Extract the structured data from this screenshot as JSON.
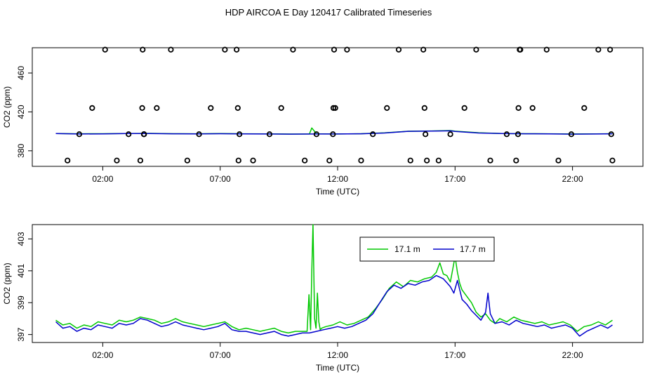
{
  "title": "HDP AIRCOA E  Day 120417  Calibrated Timeseries",
  "chart_data": [
    {
      "type": "scatter",
      "id": "top",
      "xlabel": "Time (UTC)",
      "ylabel": "CO2 (ppm)",
      "xlim": [
        -1.0,
        25.0
      ],
      "ylim": [
        364,
        486
      ],
      "x_ticks": [
        2,
        7,
        12,
        17,
        22
      ],
      "x_tick_labels": [
        "02:00",
        "07:00",
        "12:00",
        "17:00",
        "22:00"
      ],
      "y_ticks": [
        380,
        420,
        460
      ],
      "y_tick_labels": [
        "380",
        "420",
        "460"
      ],
      "grid": false,
      "calibration_points": {
        "x": [
          0.5,
          1.0,
          1.55,
          2.1,
          2.6,
          3.1,
          3.6,
          3.68,
          3.7,
          3.75,
          3.76,
          4.3,
          4.9,
          5.6,
          6.1,
          6.6,
          7.2,
          7.7,
          7.75,
          7.78,
          7.82,
          8.4,
          9.1,
          9.6,
          10.1,
          10.6,
          11.1,
          11.65,
          11.8,
          11.82,
          11.85,
          11.9,
          12.4,
          13.0,
          13.5,
          14.1,
          14.6,
          15.1,
          15.65,
          15.7,
          15.74,
          15.8,
          16.3,
          16.8,
          17.4,
          17.9,
          18.5,
          19.2,
          19.6,
          19.68,
          19.7,
          19.75,
          19.78,
          20.3,
          20.9,
          21.4,
          21.95,
          22.5,
          23.1,
          23.6,
          23.65,
          23.7
        ],
        "y": [
          370,
          397,
          424,
          484,
          370,
          397,
          370,
          424,
          484,
          397,
          397,
          424,
          484,
          370,
          397,
          424,
          484,
          484,
          424,
          370,
          397,
          370,
          397,
          424,
          484,
          370,
          397,
          370,
          397,
          424,
          484,
          424,
          484,
          370,
          397,
          424,
          484,
          370,
          484,
          424,
          397,
          370,
          370,
          397,
          424,
          484,
          370,
          397,
          370,
          397,
          424,
          484,
          484,
          424,
          484,
          370,
          397,
          424,
          484,
          484,
          397,
          370
        ]
      },
      "series": [
        {
          "name": "",
          "color": "#00c800",
          "x": [
            0,
            1,
            2,
            3,
            4,
            5,
            6,
            7,
            8,
            9,
            10,
            10.8,
            10.9,
            11.1,
            11.3,
            12,
            13,
            14,
            15,
            16,
            16.8,
            17,
            18,
            19,
            20,
            21,
            22,
            23,
            23.7
          ],
          "y": [
            397.8,
            397.5,
            397.6,
            397.8,
            397.9,
            397.6,
            397.5,
            397.7,
            397.5,
            397.4,
            397.2,
            397.3,
            403.5,
            397.5,
            397.4,
            397.3,
            397.6,
            398.5,
            400.1,
            400.4,
            400.8,
            400.2,
            398.6,
            397.8,
            397.6,
            397.5,
            397.3,
            397.4,
            397.6
          ]
        },
        {
          "name": "",
          "color": "#0000cc",
          "x": [
            0,
            1,
            2,
            3,
            4,
            5,
            6,
            7,
            8,
            9,
            10,
            11,
            12,
            13,
            14,
            15,
            16,
            16.8,
            17,
            18,
            19,
            20,
            21,
            22,
            23,
            23.7
          ],
          "y": [
            397.8,
            397.3,
            397.4,
            397.7,
            397.8,
            397.5,
            397.4,
            397.6,
            397.4,
            397.3,
            397.1,
            397.3,
            397.3,
            397.5,
            398.3,
            400.0,
            400.3,
            400.5,
            399.9,
            398.3,
            397.7,
            397.5,
            397.4,
            397.1,
            397.3,
            397.5
          ]
        }
      ]
    },
    {
      "type": "line",
      "id": "bottom",
      "xlabel": "Time (UTC)",
      "ylabel": "CO2 (ppm)",
      "xlim": [
        -1.0,
        25.0
      ],
      "ylim": [
        396.5,
        403.9
      ],
      "x_ticks": [
        2,
        7,
        12,
        17,
        22
      ],
      "x_tick_labels": [
        "02:00",
        "07:00",
        "12:00",
        "17:00",
        "22:00"
      ],
      "y_ticks": [
        397,
        399,
        401,
        403
      ],
      "y_tick_labels": [
        "397",
        "399",
        "401",
        "403"
      ],
      "grid": false,
      "legend_position": "top-right",
      "series": [
        {
          "name": "17.1 m",
          "color": "#00c800",
          "x": [
            0.0,
            0.3,
            0.6,
            0.9,
            1.2,
            1.5,
            1.8,
            2.1,
            2.4,
            2.7,
            3.0,
            3.3,
            3.6,
            3.9,
            4.2,
            4.5,
            4.8,
            5.1,
            5.4,
            5.7,
            6.0,
            6.3,
            6.6,
            6.9,
            7.2,
            7.5,
            7.8,
            8.1,
            8.4,
            8.7,
            9.0,
            9.3,
            9.6,
            9.9,
            10.2,
            10.5,
            10.7,
            10.78,
            10.85,
            10.9,
            10.95,
            11.02,
            11.08,
            11.14,
            11.2,
            11.26,
            11.32,
            11.5,
            11.8,
            12.1,
            12.4,
            12.7,
            13.0,
            13.3,
            13.6,
            13.9,
            14.2,
            14.5,
            14.8,
            15.1,
            15.4,
            15.7,
            16.0,
            16.2,
            16.35,
            16.5,
            16.65,
            16.8,
            16.9,
            17.0,
            17.1,
            17.2,
            17.3,
            17.5,
            17.7,
            17.9,
            18.1,
            18.3,
            18.5,
            18.7,
            18.9,
            19.2,
            19.5,
            19.8,
            20.1,
            20.4,
            20.7,
            21.0,
            21.3,
            21.6,
            21.9,
            22.2,
            22.5,
            22.8,
            23.1,
            23.4,
            23.7
          ],
          "y": [
            397.9,
            397.6,
            397.7,
            397.4,
            397.6,
            397.5,
            397.8,
            397.7,
            397.6,
            397.9,
            397.8,
            397.9,
            398.1,
            398.0,
            397.9,
            397.7,
            397.8,
            398.0,
            397.8,
            397.7,
            397.6,
            397.5,
            397.6,
            397.7,
            397.8,
            397.5,
            397.3,
            397.4,
            397.3,
            397.2,
            397.3,
            397.4,
            397.2,
            397.1,
            397.2,
            397.2,
            397.2,
            399.5,
            397.3,
            401.0,
            403.9,
            398.0,
            397.4,
            399.6,
            397.8,
            397.3,
            397.4,
            397.5,
            397.6,
            397.8,
            397.6,
            397.7,
            397.9,
            398.1,
            398.6,
            399.2,
            399.9,
            400.3,
            400.0,
            400.4,
            400.3,
            400.5,
            400.6,
            400.9,
            401.5,
            400.8,
            400.7,
            400.3,
            401.1,
            401.9,
            400.9,
            400.2,
            399.8,
            399.4,
            399.0,
            398.4,
            398.1,
            398.3,
            397.9,
            397.7,
            398.0,
            397.8,
            398.1,
            397.9,
            397.8,
            397.7,
            397.8,
            397.6,
            397.7,
            397.8,
            397.6,
            397.2,
            397.5,
            397.6,
            397.8,
            397.6,
            397.9
          ]
        },
        {
          "name": "17.7 m",
          "color": "#0000cc",
          "x": [
            0.0,
            0.3,
            0.6,
            0.9,
            1.2,
            1.5,
            1.8,
            2.1,
            2.4,
            2.7,
            3.0,
            3.3,
            3.6,
            3.9,
            4.2,
            4.5,
            4.8,
            5.1,
            5.4,
            5.7,
            6.0,
            6.3,
            6.6,
            6.9,
            7.2,
            7.5,
            7.8,
            8.1,
            8.4,
            8.7,
            9.0,
            9.3,
            9.6,
            9.9,
            10.2,
            10.5,
            10.8,
            11.1,
            11.4,
            11.7,
            12.0,
            12.3,
            12.6,
            12.9,
            13.2,
            13.5,
            13.8,
            14.1,
            14.4,
            14.7,
            15.0,
            15.3,
            15.6,
            15.9,
            16.2,
            16.5,
            16.8,
            16.95,
            17.1,
            17.3,
            17.5,
            17.7,
            17.9,
            18.1,
            18.3,
            18.4,
            18.5,
            18.7,
            19.0,
            19.3,
            19.6,
            19.9,
            20.2,
            20.5,
            20.8,
            21.1,
            21.4,
            21.7,
            22.0,
            22.3,
            22.6,
            22.9,
            23.2,
            23.5,
            23.7
          ],
          "y": [
            397.8,
            397.4,
            397.5,
            397.2,
            397.4,
            397.3,
            397.6,
            397.5,
            397.4,
            397.7,
            397.6,
            397.7,
            398.0,
            397.9,
            397.7,
            397.5,
            397.6,
            397.8,
            397.6,
            397.5,
            397.4,
            397.3,
            397.4,
            397.5,
            397.7,
            397.3,
            397.2,
            397.2,
            397.1,
            397.0,
            397.1,
            397.2,
            397.0,
            396.9,
            397.0,
            397.1,
            397.1,
            397.2,
            397.3,
            397.4,
            397.5,
            397.4,
            397.5,
            397.7,
            397.9,
            398.3,
            399.0,
            399.7,
            400.1,
            399.9,
            400.2,
            400.1,
            400.3,
            400.4,
            400.7,
            400.5,
            400.0,
            399.6,
            400.4,
            399.2,
            398.9,
            398.5,
            398.2,
            397.9,
            398.4,
            399.6,
            398.3,
            397.7,
            397.8,
            397.6,
            397.9,
            397.7,
            397.6,
            397.5,
            397.6,
            397.4,
            397.5,
            397.6,
            397.4,
            396.9,
            397.2,
            397.4,
            397.6,
            397.4,
            397.6
          ]
        }
      ]
    }
  ]
}
